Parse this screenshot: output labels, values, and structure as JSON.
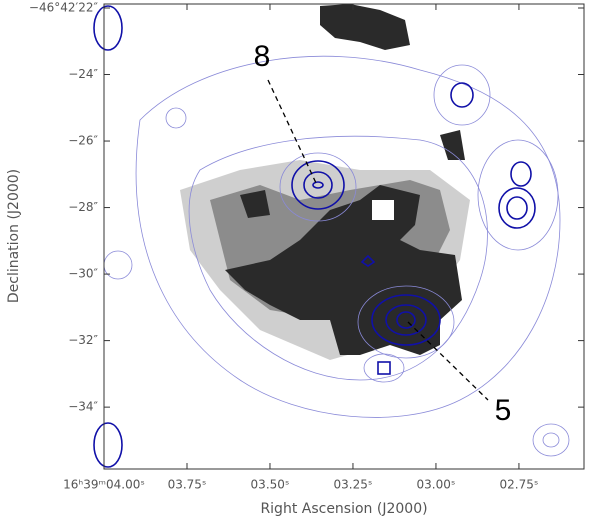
{
  "chart_data": {
    "type": "image",
    "xlabel": "Right Ascension (J2000)",
    "ylabel": "Declination (J2000)",
    "xlim": [
      4.0,
      2.554
    ],
    "ylim": [
      -35.86,
      -21.88
    ],
    "xticks": [
      {
        "value": 4.0,
        "label": "16ʰ39ᵐ04.00ˢ"
      },
      {
        "value": 3.75,
        "label": "03.75ˢ"
      },
      {
        "value": 3.5,
        "label": "03.50ˢ"
      },
      {
        "value": 3.25,
        "label": "03.25ˢ"
      },
      {
        "value": 3.0,
        "label": "03.00ˢ"
      },
      {
        "value": 2.75,
        "label": "02.75ˢ"
      }
    ],
    "yticks": [
      {
        "value": -22,
        "label": "−46°42′22″"
      },
      {
        "value": -24,
        "label": "−24″"
      },
      {
        "value": -26,
        "label": "−26″"
      },
      {
        "value": -28,
        "label": "−28″"
      },
      {
        "value": -30,
        "label": "−30″"
      },
      {
        "value": -32,
        "label": "−32″"
      },
      {
        "value": -34,
        "label": "−34″"
      }
    ],
    "annotations": [
      "8",
      "5"
    ]
  }
}
